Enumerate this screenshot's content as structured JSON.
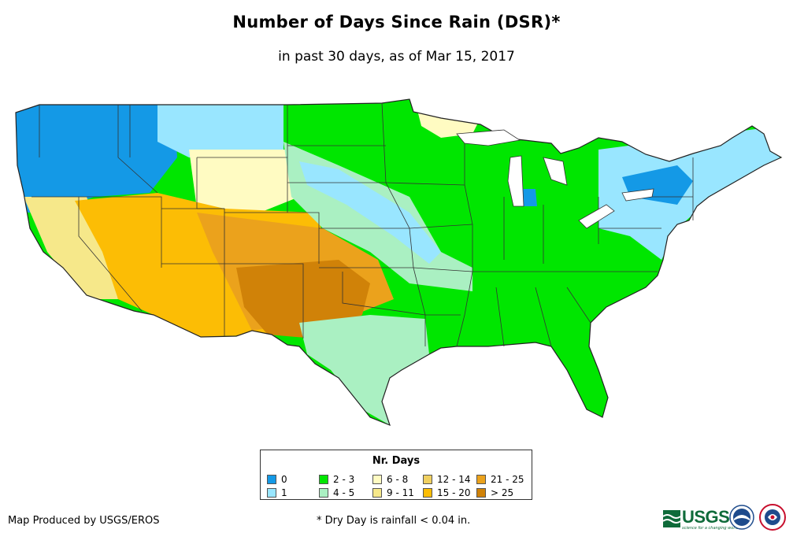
{
  "title": "Number of Days Since Rain (DSR)*",
  "subtitle": "in past 30 days, as of Mar 15, 2017",
  "legend": {
    "title": "Nr. Days",
    "items": [
      {
        "label": "0",
        "color": "#1499e6"
      },
      {
        "label": "1",
        "color": "#99e6ff"
      },
      {
        "label": "2 - 3",
        "color": "#00e600"
      },
      {
        "label": "4 - 5",
        "color": "#aaf0c2"
      },
      {
        "label": "6 - 8",
        "color": "#fffbc2"
      },
      {
        "label": "9 - 11",
        "color": "#f6e88a"
      },
      {
        "label": "12 - 14",
        "color": "#f0d060"
      },
      {
        "label": "15 - 20",
        "color": "#fcbd05"
      },
      {
        "label": "21 - 25",
        "color": "#eba21c"
      },
      {
        "label": "> 25",
        "color": "#d08208"
      }
    ]
  },
  "footer": {
    "producer": "Map Produced by USGS/EROS",
    "note": "* Dry Day is rainfall < 0.04 in."
  },
  "logos": {
    "usgs": "USGS",
    "usgs_tagline": "science for a changing world",
    "noaa": "noaa-logo",
    "nws": "nws-logo"
  }
}
